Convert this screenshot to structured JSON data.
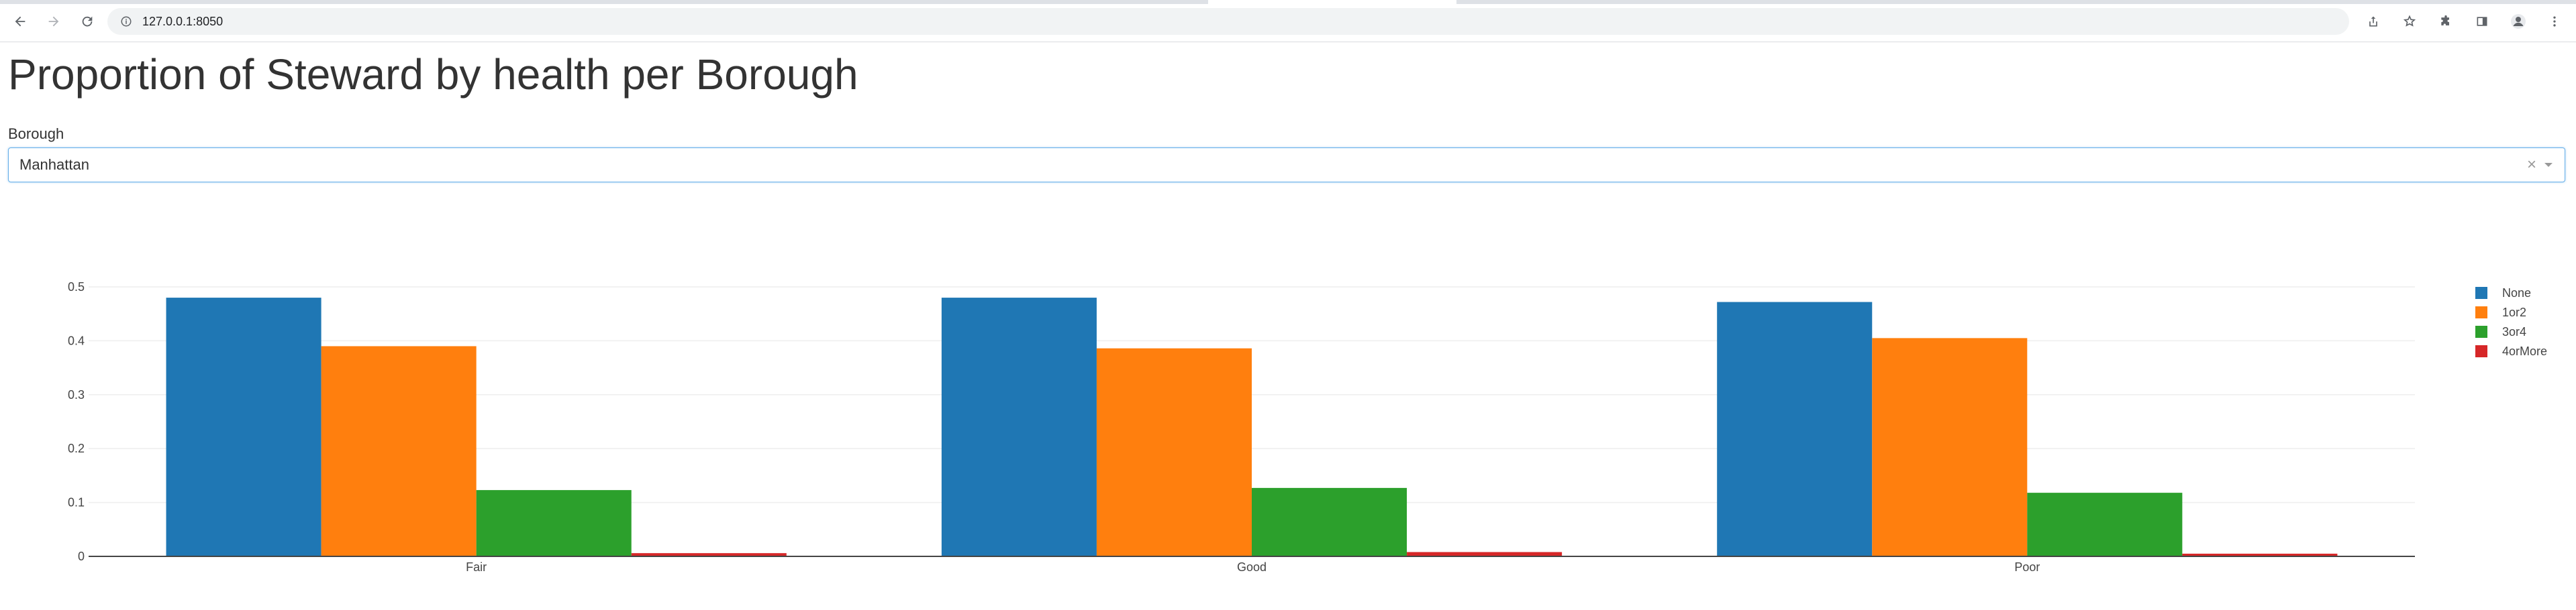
{
  "browser": {
    "url": "127.0.0.1:8050"
  },
  "page": {
    "title": "Proportion of Steward by health per Borough",
    "filter_label": "Borough",
    "filter_value": "Manhattan"
  },
  "chart_data": {
    "type": "bar",
    "title": "",
    "xlabel": "",
    "ylabel": "",
    "categories": [
      "Fair",
      "Good",
      "Poor"
    ],
    "series": [
      {
        "name": "None",
        "color": "#1f77b4",
        "values": [
          0.48,
          0.48,
          0.472
        ]
      },
      {
        "name": "1or2",
        "color": "#ff7f0e",
        "values": [
          0.39,
          0.386,
          0.405
        ]
      },
      {
        "name": "3or4",
        "color": "#2ca02c",
        "values": [
          0.123,
          0.127,
          0.118
        ]
      },
      {
        "name": "4orMore",
        "color": "#d62728",
        "values": [
          0.006,
          0.008,
          0.005
        ]
      }
    ],
    "ylim": [
      0,
      0.5
    ],
    "yticks": [
      0,
      0.1,
      0.2,
      0.3,
      0.4,
      0.5
    ],
    "ytick_labels": [
      "0",
      "0.1",
      "0.2",
      "0.3",
      "0.4",
      "0.5"
    ],
    "grid": true,
    "legend_position": "top-right"
  }
}
